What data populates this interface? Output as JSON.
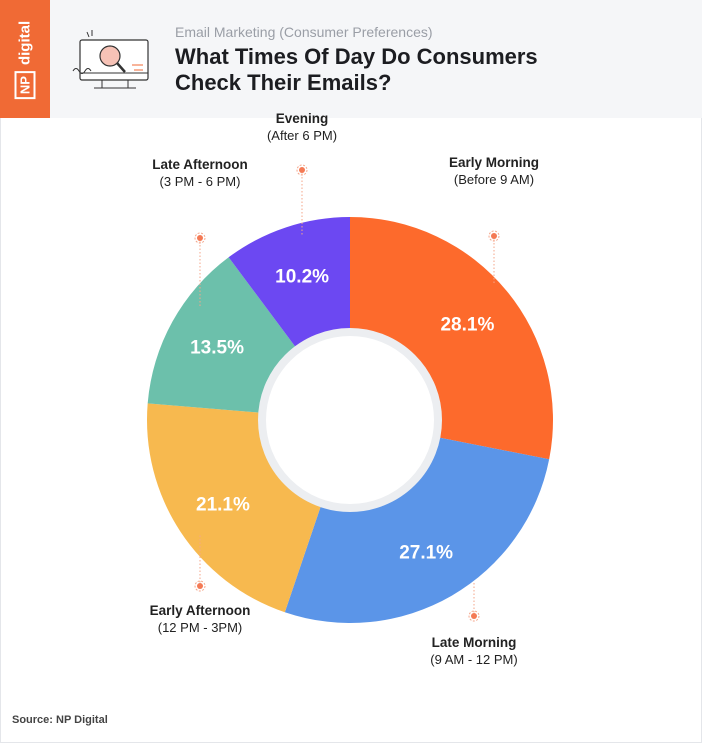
{
  "header": {
    "logo": "NP digital",
    "subtitle": "Email Marketing (Consumer Preferences)",
    "title": "What Times Of Day Do Consumers Check Their Emails?"
  },
  "chart_data": {
    "type": "pie",
    "donut": true,
    "title": "What Times Of Day Do Consumers Check Their Emails?",
    "categories": [
      {
        "name": "Early Morning",
        "range": "(Before 9 AM)",
        "value": 28.1,
        "label": "28.1%",
        "color": "#fd6a2c"
      },
      {
        "name": "Late Morning",
        "range": "(9 AM - 12 PM)",
        "value": 27.1,
        "label": "27.1%",
        "color": "#5b95e8"
      },
      {
        "name": "Early Afternoon",
        "range": "(12 PM - 3PM)",
        "value": 21.1,
        "label": "21.1%",
        "color": "#f7b94f"
      },
      {
        "name": "Late Afternoon",
        "range": "(3 PM - 6 PM)",
        "value": 13.5,
        "label": "13.5%",
        "color": "#6cc0ab"
      },
      {
        "name": "Evening",
        "range": "(After 6 PM)",
        "value": 10.2,
        "label": "10.2%",
        "color": "#6c48f2"
      }
    ]
  },
  "footer": {
    "source": "Source: NP Digital"
  }
}
